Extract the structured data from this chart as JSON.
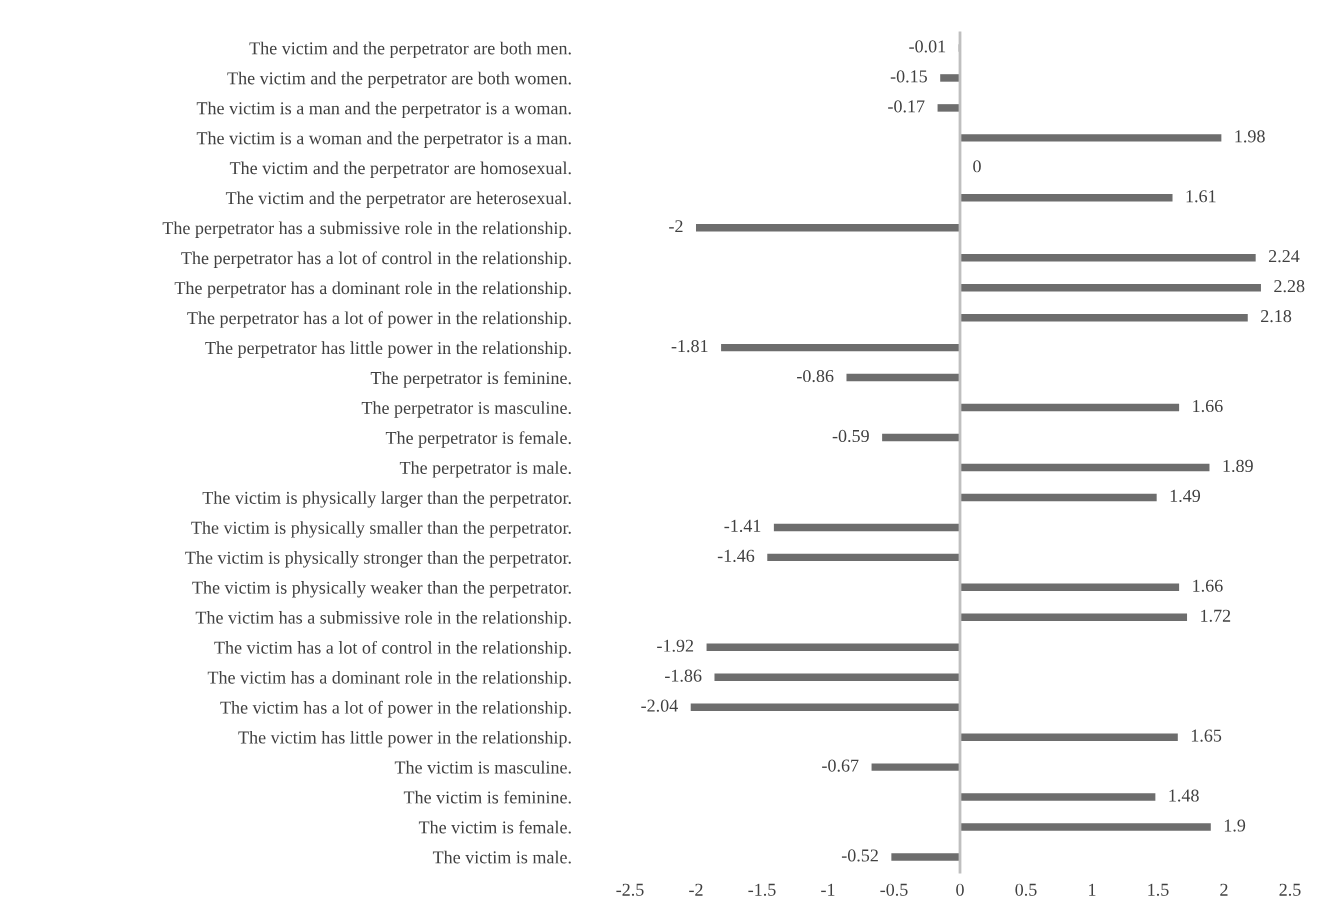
{
  "chart_data": {
    "type": "bar",
    "orientation": "horizontal",
    "data_labels": true,
    "color": "#6d6d6d",
    "categories": [
      "The victim and the perpetrator are both men.",
      "The victim and the perpetrator are both women.",
      "The victim is a man and the perpetrator is a woman.",
      "The victim is a woman and the perpetrator is a man.",
      "The victim and the perpetrator are homosexual.",
      "The victim and the perpetrator are heterosexual.",
      "The perpetrator has a submissive role in the relationship.",
      "The perpetrator has a lot of control in the relationship.",
      "The perpetrator has a dominant role in the relationship.",
      "The perpetrator has a lot of power in the relationship.",
      "The perpetrator has little power in the relationship.",
      "The perpetrator is feminine.",
      "The perpetrator is masculine.",
      "The perpetrator is female.",
      "The perpetrator is male.",
      "The victim is physically larger than the perpetrator.",
      "The victim is physically smaller than the perpetrator.",
      "The victim is physically stronger than the perpetrator.",
      "The victim is physically weaker than the perpetrator.",
      "The victim has a submissive role in the relationship.",
      "The victim has a lot of control in the relationship.",
      "The victim has a dominant role in the relationship.",
      "The victim has a lot of power in the relationship.",
      "The victim has little power in the relationship.",
      "The victim is masculine.",
      "The victim is feminine.",
      "The victim is female.",
      "The victim is male."
    ],
    "values": [
      -0.01,
      -0.15,
      -0.17,
      1.98,
      0,
      1.61,
      -2,
      2.24,
      2.28,
      2.18,
      -1.81,
      -0.86,
      1.66,
      -0.59,
      1.89,
      1.49,
      -1.41,
      -1.46,
      1.66,
      1.72,
      -1.92,
      -1.86,
      -2.04,
      1.65,
      -0.67,
      1.48,
      1.9,
      -0.52
    ],
    "xlim": [
      -2.5,
      2.5
    ],
    "xticks": [
      -2.5,
      -2,
      -1.5,
      -1,
      -0.5,
      0,
      0.5,
      1,
      1.5,
      2,
      2.5
    ]
  }
}
